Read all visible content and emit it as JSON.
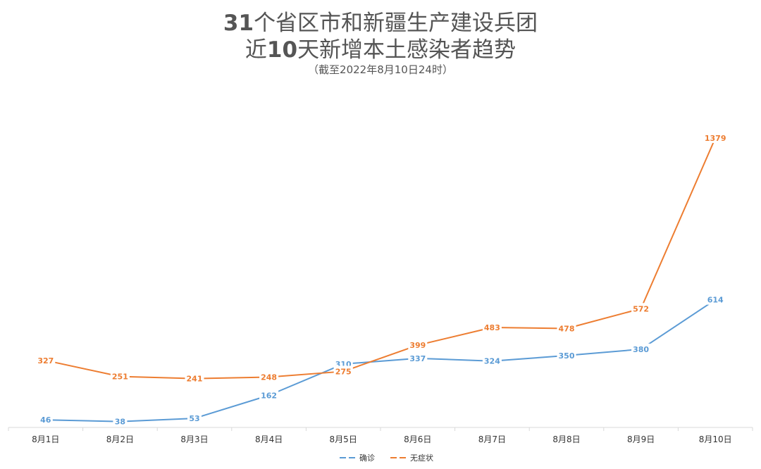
{
  "header": {
    "title_line1_num": "31",
    "title_line1_text": "个省区市和新疆生产建设兵团",
    "title_line2_pre": "近",
    "title_line2_num": "10",
    "title_line2_text": "天新增本土感染者趋势",
    "subtitle": "（截至2022年8月10日24时）"
  },
  "chart_data": {
    "type": "line",
    "title": "31个省区市和新疆生产建设兵团近10天新增本土感染者趋势",
    "subtitle": "（截至2022年8月10日24时）",
    "xlabel": "",
    "ylabel": "",
    "categories": [
      "8月1日",
      "8月2日",
      "8月3日",
      "8月4日",
      "8月5日",
      "8月6日",
      "8月7日",
      "8月8日",
      "8月9日",
      "8月10日"
    ],
    "ylim": [
      0,
      1500
    ],
    "grid": false,
    "legend_position": "bottom-center",
    "series": [
      {
        "name": "确诊",
        "color": "#5b9bd5",
        "values": [
          46,
          38,
          53,
          162,
          310,
          337,
          324,
          350,
          380,
          614
        ]
      },
      {
        "name": "无症状",
        "color": "#ed7d31",
        "values": [
          327,
          251,
          241,
          248,
          275,
          399,
          483,
          478,
          572,
          1379
        ]
      }
    ]
  }
}
